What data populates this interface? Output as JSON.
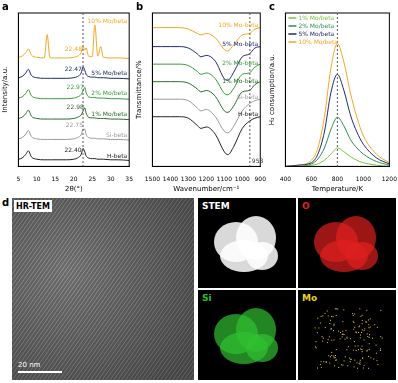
{
  "chart_data": [
    {
      "panel": "a",
      "type": "line",
      "x_label": "2θ(°)",
      "y_label": "Intensity/a.u.",
      "x": [
        5,
        6,
        7,
        7.7,
        8.5,
        10,
        12,
        12.8,
        13.5,
        14,
        16,
        18,
        20,
        21,
        22,
        22.5,
        23,
        23.3,
        24,
        25,
        25.7,
        26.5,
        27.3,
        28,
        30,
        32,
        35
      ],
      "series": [
        {
          "name": "10% Mo/beta",
          "color": "#f5a623",
          "peak": {
            "value": 22.48,
            "label": "22.48"
          },
          "values": [
            91,
            92,
            95,
            98,
            93,
            91,
            90.5,
            110,
            91,
            90.5,
            90.5,
            90.5,
            91,
            92,
            95,
            100,
            97,
            99,
            92,
            91.5,
            118,
            92,
            100,
            91,
            90.5,
            90.5,
            90
          ]
        },
        {
          "name": "5% Mo/beta",
          "color": "#1f2a6b",
          "peak": {
            "value": 22.47,
            "label": "22.47"
          },
          "values": [
            74,
            75,
            78,
            81,
            76,
            74,
            73.5,
            73.5,
            73.5,
            73.5,
            73.5,
            73.5,
            74,
            75,
            78,
            83,
            80,
            77,
            75,
            74.5,
            74.5,
            74,
            74,
            74,
            73.5,
            73.5,
            73
          ]
        },
        {
          "name": "2% Mo/beta",
          "color": "#3a9a3a",
          "peak": {
            "value": 22.97,
            "label": "22.97"
          },
          "values": [
            57,
            58,
            61,
            64,
            59,
            57,
            56.5,
            56.5,
            56.5,
            56.5,
            56.5,
            56.5,
            57,
            58,
            60,
            63,
            66,
            62,
            58,
            57.5,
            57.5,
            57,
            57,
            57,
            56.5,
            56.5,
            56
          ]
        },
        {
          "name": "1% Mo/beta",
          "color": "#2d6b2d",
          "peak": {
            "value": 22.98,
            "label": "22.98"
          },
          "values": [
            40,
            41,
            44,
            47,
            42,
            40,
            39.5,
            39.5,
            39.5,
            39.5,
            39.5,
            39.5,
            40,
            41,
            43,
            46,
            49,
            45,
            41,
            40.5,
            40.5,
            40,
            40,
            40,
            39.5,
            39.5,
            39
          ]
        },
        {
          "name": "Si-beta",
          "color": "#9a9a9a",
          "peak": {
            "value": 22.75,
            "label": "22.75"
          },
          "values": [
            23,
            24,
            27,
            30,
            25,
            23,
            22.5,
            22.5,
            22.5,
            22.5,
            22.5,
            22.5,
            23,
            24,
            26.5,
            31,
            31,
            27,
            24,
            23.5,
            23.5,
            23,
            23,
            23,
            22.5,
            22.5,
            22
          ]
        },
        {
          "name": "H-beta",
          "color": "#222222",
          "peak": {
            "value": 22.4,
            "label": "22.40"
          },
          "values": [
            6,
            7,
            10,
            13,
            8,
            6,
            5.5,
            5.5,
            5.5,
            5.5,
            5.5,
            5.5,
            6,
            7,
            10,
            15,
            12,
            9,
            7,
            6.5,
            6.5,
            6,
            6,
            6,
            5.5,
            5.5,
            5
          ]
        }
      ],
      "xlim": [
        5,
        35
      ],
      "xticks": [
        5,
        10,
        15,
        20,
        25,
        30,
        35
      ],
      "ylim": [
        0,
        128
      ],
      "tick_labels": "x",
      "grid": false,
      "reference_x": {
        "value": 22.5
      }
    },
    {
      "panel": "b",
      "type": "line",
      "x_label": "Wavenumber/cm⁻¹",
      "y_label": "Transmittance/%",
      "x": [
        1500,
        1450,
        1400,
        1350,
        1300,
        1250,
        1230,
        1200,
        1150,
        1100,
        1080,
        1050,
        1000,
        960,
        930,
        900
      ],
      "series": [
        {
          "name": "10% Mo-beta",
          "color": "#f5a623",
          "values": [
            95,
            95,
            95,
            95,
            94,
            91,
            90,
            91,
            88,
            80,
            79,
            83,
            90,
            91,
            94,
            95
          ]
        },
        {
          "name": "5% Mo-beta",
          "color": "#1f2a6b",
          "values": [
            82,
            82,
            82,
            82,
            81,
            77,
            75,
            76,
            72,
            60,
            59,
            64,
            75,
            77,
            81,
            82
          ]
        },
        {
          "name": "2% Mo-beta",
          "color": "#3a9a3a",
          "values": [
            70,
            70,
            70,
            70,
            69,
            65,
            63,
            64,
            60,
            50,
            49,
            53,
            63,
            64,
            68,
            70
          ]
        },
        {
          "name": "1% Mo-beta",
          "color": "#2d6b2d",
          "values": [
            58,
            58,
            58,
            58,
            57,
            53,
            51,
            52,
            48,
            38,
            37,
            41,
            51,
            52,
            56,
            58
          ]
        },
        {
          "name": "Si-beta",
          "color": "#9a9a9a",
          "values": [
            46,
            46,
            46,
            46,
            45,
            40,
            38,
            39,
            34,
            24,
            23,
            27,
            38,
            43,
            45,
            46
          ]
        },
        {
          "name": "H-beta",
          "color": "#222222",
          "values": [
            34,
            34,
            34,
            34,
            33,
            28,
            26,
            27,
            22,
            10,
            8,
            13,
            26,
            31,
            33,
            34
          ]
        }
      ],
      "xlim": [
        1500,
        900
      ],
      "xticks": [
        1500,
        1400,
        1300,
        1200,
        1100,
        1000,
        900
      ],
      "ylim": [
        0,
        105
      ],
      "tick_labels": "x",
      "grid": false,
      "reference_x": {
        "value": 958,
        "label": "958"
      }
    },
    {
      "panel": "c",
      "type": "line",
      "x_label": "Temperature/K",
      "y_label": "H₂ consumption/a.u.",
      "x": [
        400,
        500,
        600,
        650,
        700,
        750,
        800,
        850,
        900,
        950,
        1000,
        1100,
        1200
      ],
      "series": [
        {
          "name": "1% Mo/beta",
          "color": "#7cc242",
          "values": [
            0,
            0,
            1,
            2,
            5,
            10,
            15,
            12,
            8,
            5,
            3,
            1,
            0
          ]
        },
        {
          "name": "2% Mo/beta",
          "color": "#2e8b57",
          "values": [
            0,
            0,
            2,
            6,
            15,
            30,
            40,
            33,
            22,
            15,
            10,
            4,
            1
          ]
        },
        {
          "name": "5% Mo/beta",
          "color": "#1f2a6b",
          "values": [
            0,
            1,
            3,
            10,
            28,
            60,
            75,
            62,
            42,
            28,
            18,
            7,
            2
          ]
        },
        {
          "name": "10% Mo/beta",
          "color": "#f5a623",
          "values": [
            0,
            1,
            5,
            15,
            40,
            80,
            100,
            85,
            60,
            40,
            25,
            10,
            3
          ]
        }
      ],
      "xlim": [
        400,
        1200
      ],
      "xticks": [
        400,
        600,
        800,
        1000,
        1200
      ],
      "ylim": [
        0,
        125
      ],
      "tick_labels": "x",
      "grid": false,
      "legend": "upper left",
      "reference_x": {
        "value": 800
      }
    }
  ],
  "panel_d": {
    "panel": "d",
    "hrtem": {
      "title": "HR-TEM",
      "scale_bar": "20 nm"
    },
    "maps": [
      {
        "label": "STEM",
        "color": "#ffffff"
      },
      {
        "label": "O",
        "color": "#e02020"
      },
      {
        "label": "Si",
        "color": "#30c030"
      },
      {
        "label": "Mo",
        "color": "#e8d020"
      }
    ]
  }
}
